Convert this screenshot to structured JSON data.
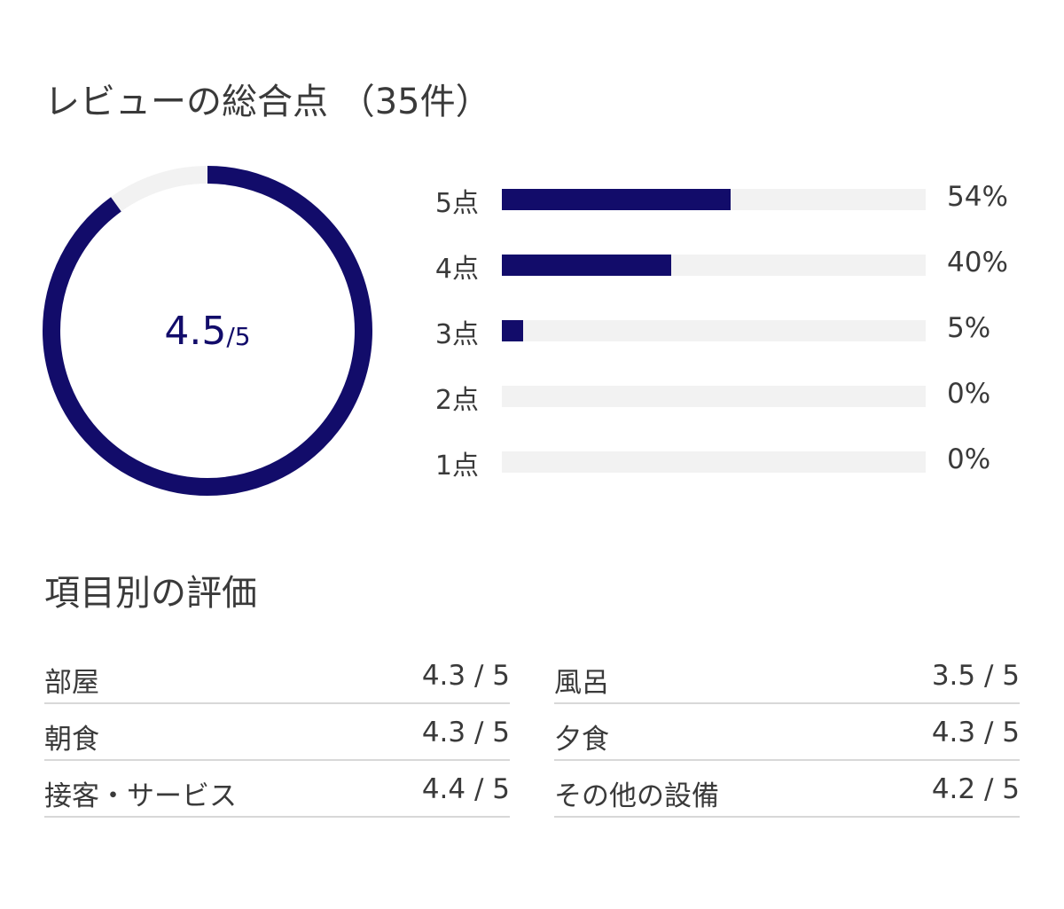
{
  "overall": {
    "title": "レビューの総合点 （35件）",
    "score": "4.5",
    "score_max": "/5",
    "score_value": 4.5,
    "score_out_of": 5,
    "ring_color": "#120c6a",
    "ring_track_color": "#f2f2f2"
  },
  "distribution": [
    {
      "label": "5点",
      "percent_text": "54%",
      "percent": 54
    },
    {
      "label": "4点",
      "percent_text": "40%",
      "percent": 40
    },
    {
      "label": "3点",
      "percent_text": "5%",
      "percent": 5
    },
    {
      "label": "2点",
      "percent_text": "0%",
      "percent": 0
    },
    {
      "label": "1点",
      "percent_text": "0%",
      "percent": 0
    }
  ],
  "categories": {
    "title": "項目別の評価",
    "left": [
      {
        "name": "部屋",
        "score": "4.3 / 5"
      },
      {
        "name": "朝食",
        "score": "4.3 / 5"
      },
      {
        "name": "接客・サービス",
        "score": "4.4 / 5"
      }
    ],
    "right": [
      {
        "name": "風呂",
        "score": "3.5 / 5"
      },
      {
        "name": "夕食",
        "score": "4.3 / 5"
      },
      {
        "name": "その他の設備",
        "score": "4.2 / 5"
      }
    ]
  }
}
